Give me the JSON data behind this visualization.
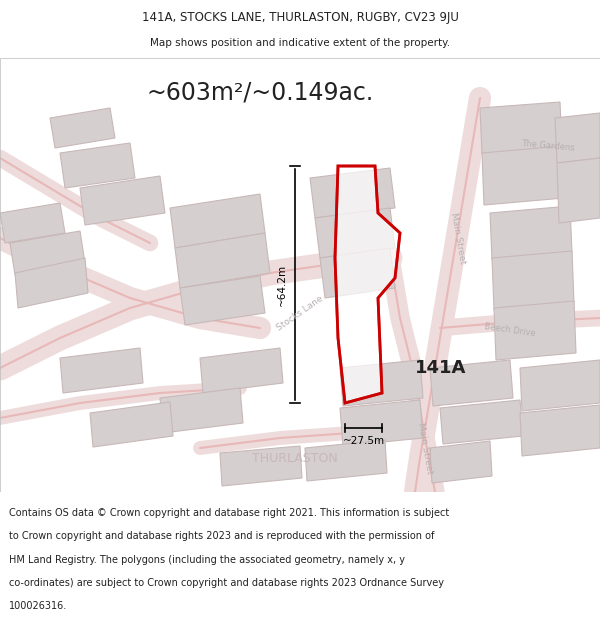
{
  "title_line1": "141A, STOCKS LANE, THURLASTON, RUGBY, CV23 9JU",
  "title_line2": "Map shows position and indicative extent of the property.",
  "area_text": "~603m²/~0.149ac.",
  "label_141A": "141A",
  "dim_width": "~27.5m",
  "dim_height": "~64.2m",
  "label_main_street_1": "Main Street",
  "label_main_street_2": "Main Street",
  "label_stocks_lane": "Stocks Lane",
  "label_beech_drive": "Beech Drive",
  "label_the_gardens": "The Gardens",
  "label_thurlaston": "THURLASTON",
  "footer_line1": "Contains OS data © Crown copyright and database right 2021. This information is subject",
  "footer_line2": "to Crown copyright and database rights 2023 and is reproduced with the permission of",
  "footer_line3": "HM Land Registry. The polygons (including the associated geometry, namely x, y",
  "footer_line4": "co-ordinates) are subject to Crown copyright and database rights 2023 Ordnance Survey",
  "footer_line5": "100026316.",
  "bg_color": "#f8f5f5",
  "map_bg": "#f5f0f0",
  "road_fill": "#eedcdc",
  "road_color": "#e8b8b8",
  "building_color": "#d6cfcf",
  "building_edge": "#c8b8b8",
  "highlight_color": "#cc0000",
  "text_dark": "#222222",
  "text_road": "#b8b0b0",
  "text_thurlaston": "#c8b8b8"
}
